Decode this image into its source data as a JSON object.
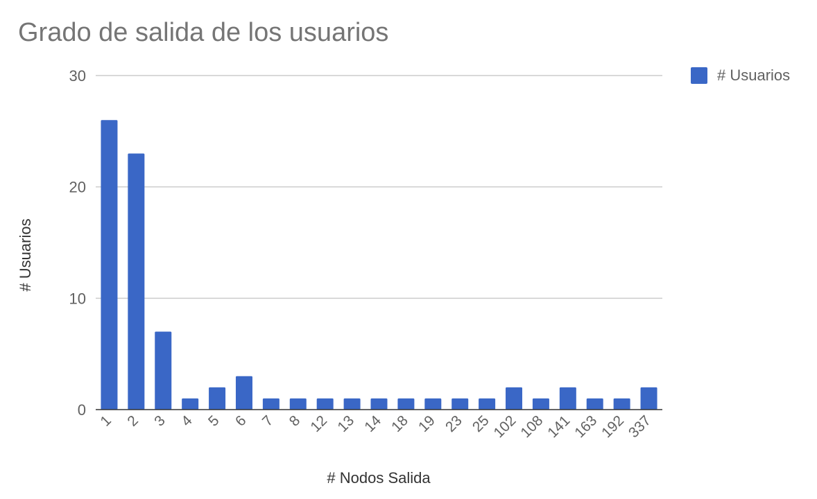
{
  "colors": {
    "bar": "#3a67c6",
    "grid": "#cccccc",
    "axis": "#333333",
    "title": "#757575",
    "text": "#616161"
  },
  "legend": {
    "label": "# Usuarios",
    "placement": "top-right"
  },
  "chart_data": {
    "type": "bar",
    "title": "Grado de salida de los usuarios",
    "xlabel": "# Nodos Salida",
    "ylabel": "# Usuarios",
    "ylim": [
      0,
      30
    ],
    "yticks": [
      0,
      10,
      20,
      30
    ],
    "grid": true,
    "categories": [
      "1",
      "2",
      "3",
      "4",
      "5",
      "6",
      "7",
      "8",
      "12",
      "13",
      "14",
      "18",
      "19",
      "23",
      "25",
      "102",
      "108",
      "141",
      "163",
      "192",
      "337"
    ],
    "series": [
      {
        "name": "# Usuarios",
        "values": [
          26,
          23,
          7,
          1,
          2,
          3,
          1,
          1,
          1,
          1,
          1,
          1,
          1,
          1,
          1,
          2,
          1,
          2,
          1,
          1,
          2
        ]
      }
    ]
  }
}
